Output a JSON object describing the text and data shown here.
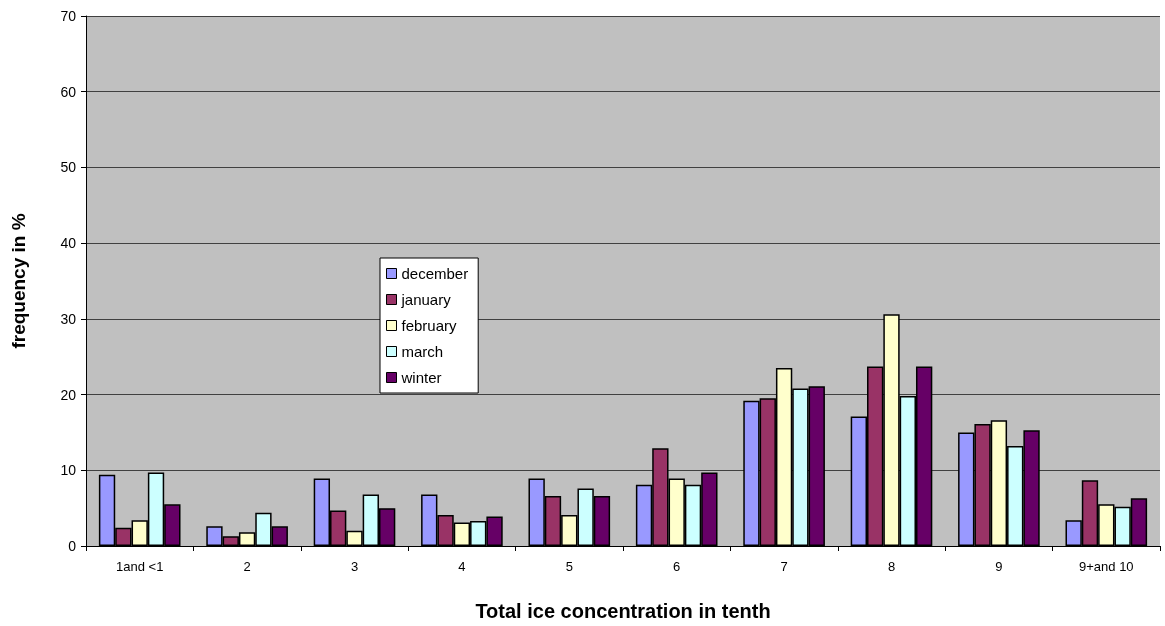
{
  "chart_data": {
    "type": "bar",
    "xlabel": "Total ice concentration in tenth",
    "ylabel": "frequency in %",
    "categories": [
      "1and <1",
      "2",
      "3",
      "4",
      "5",
      "6",
      "7",
      "8",
      "9",
      "9+and 10"
    ],
    "series": [
      {
        "name": "december",
        "color": "#9999ff",
        "values": [
          9.4,
          2.6,
          8.9,
          6.8,
          8.9,
          8.1,
          19.2,
          17.1,
          15.0,
          3.4
        ]
      },
      {
        "name": "january",
        "color": "#993366",
        "values": [
          2.4,
          1.3,
          4.7,
          4.1,
          6.6,
          12.9,
          19.5,
          23.7,
          16.1,
          8.7
        ]
      },
      {
        "name": "february",
        "color": "#ffffcc",
        "values": [
          3.4,
          1.8,
          2.0,
          3.1,
          4.1,
          8.9,
          23.5,
          30.6,
          16.6,
          5.5
        ]
      },
      {
        "name": "march",
        "color": "#ccffff",
        "values": [
          9.7,
          4.4,
          6.8,
          3.3,
          7.6,
          8.1,
          20.8,
          19.8,
          13.2,
          5.2
        ]
      },
      {
        "name": "winter",
        "color": "#660066",
        "values": [
          5.5,
          2.6,
          5.0,
          3.9,
          6.6,
          9.7,
          21.1,
          23.7,
          15.3,
          6.3
        ]
      }
    ],
    "ylim": [
      0,
      70
    ],
    "yticks": [
      0,
      10,
      20,
      30,
      40,
      50,
      60,
      70
    ],
    "grid": "y",
    "legend": "left"
  }
}
